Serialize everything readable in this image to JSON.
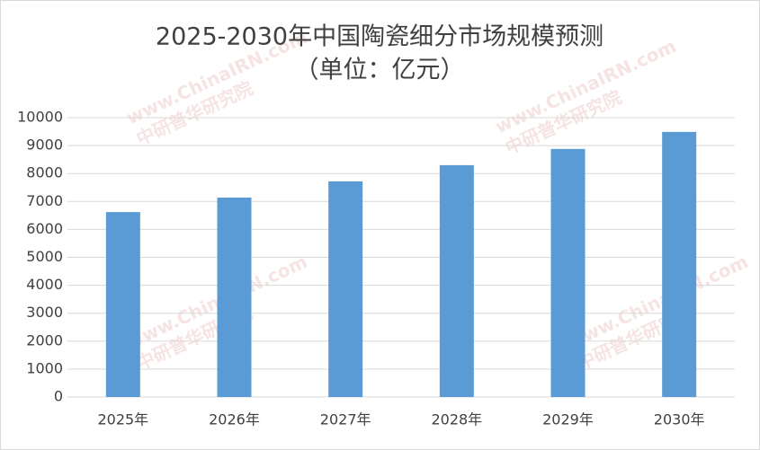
{
  "chart_data": {
    "type": "bar",
    "title": "2025-2030年中国陶瓷细分市场规模预测",
    "subtitle": "（单位：亿元）",
    "watermark": [
      "www.ChinaIRN.com",
      "中研普华研究院"
    ],
    "categories": [
      "2025年",
      "2026年",
      "2027年",
      "2028年",
      "2029年",
      "2030年"
    ],
    "values": [
      6620,
      7140,
      7720,
      8300,
      8880,
      9490
    ],
    "color": "#5b9bd5",
    "ylim": [
      0,
      10000
    ],
    "yticks": [
      0,
      1000,
      2000,
      3000,
      4000,
      5000,
      6000,
      7000,
      8000,
      9000,
      10000
    ],
    "grid": true
  }
}
